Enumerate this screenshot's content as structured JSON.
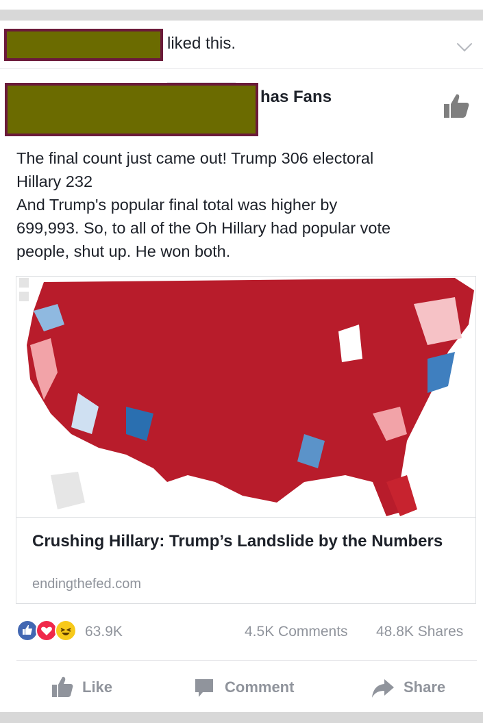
{
  "activity": {
    "text": "liked this."
  },
  "post": {
    "page_suffix": "has Fans",
    "lines": [
      "The final count just came out! Trump 306 electoral",
      "Hillary 232",
      "And Trump's popular final total was higher by",
      "699,993. So, to all of the Oh Hillary had popular vote",
      "people, shut up. He won both."
    ]
  },
  "link": {
    "title": "Crushing Hillary: Trump’s Landslide by the Numbers",
    "domain": "endingthefed.com"
  },
  "stats": {
    "reactions": "63.9K",
    "comments": "4.5K Comments",
    "shares": "48.8K Shares"
  },
  "actions": {
    "like": "Like",
    "comment": "Comment",
    "share": "Share"
  },
  "colors": {
    "redact_fill": "#6b6b00",
    "redact_border": "#6b1a3a",
    "map_red": "#b81c2b",
    "map_blue": "#2a6fb0",
    "like_blue": "#4267b2",
    "love_red": "#f0284a",
    "haha_yellow": "#f7c91a"
  },
  "icons": [
    "chevron-down-icon",
    "like-page-icon",
    "like-reaction-icon",
    "love-reaction-icon",
    "haha-reaction-icon",
    "thumbs-up-icon",
    "comment-icon",
    "share-arrow-icon"
  ]
}
